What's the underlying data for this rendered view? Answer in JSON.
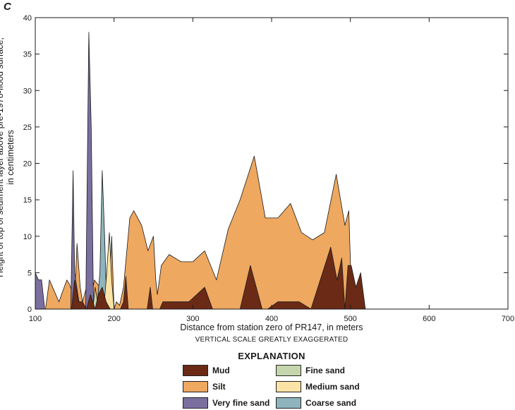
{
  "panel_letter": "C",
  "chart_data": {
    "type": "area",
    "xlabel": "Distance from station zero of PR147, in meters",
    "ylabel_lines": [
      "Height of top of sediment layer above pre-1978-flood surface,",
      "in centimeters"
    ],
    "note": "VERTICAL SCALE GREATLY EXAGGERATED",
    "xlim": [
      100,
      700
    ],
    "ylim": [
      0,
      40
    ],
    "xticks": [
      100,
      200,
      300,
      400,
      500,
      600,
      700
    ],
    "yticks": [
      0,
      5,
      10,
      15,
      20,
      25,
      30,
      35,
      40
    ],
    "x_tick_labels": [
      "100",
      "200",
      "300",
      "400",
      "500",
      "600",
      "700"
    ],
    "y_tick_labels": [
      "0",
      "5",
      "10",
      "15",
      "20",
      "25",
      "30",
      "35",
      "40"
    ],
    "grid": false,
    "legend_title": "EXPLANATION",
    "legend": [
      {
        "label": "Mud",
        "color": "#6b2a16"
      },
      {
        "label": "Silt",
        "color": "#eea860"
      },
      {
        "label": "Very fine sand",
        "color": "#7b6fa0"
      },
      {
        "label": "Fine sand",
        "color": "#c5d6ac"
      },
      {
        "label": "Medium sand",
        "color": "#fbe3a6"
      },
      {
        "label": "Coarse sand",
        "color": "#8fb4bd"
      }
    ],
    "series": [
      {
        "name": "Silt",
        "color": "#eea860",
        "points": [
          [
            113,
            0
          ],
          [
            118,
            4
          ],
          [
            130,
            1
          ],
          [
            140,
            4
          ],
          [
            143,
            3.5
          ],
          [
            150,
            1.5
          ],
          [
            153,
            9
          ],
          [
            157,
            3
          ],
          [
            160,
            1
          ],
          [
            165,
            3
          ],
          [
            167,
            12
          ],
          [
            170,
            1
          ],
          [
            175,
            4
          ],
          [
            182,
            3
          ],
          [
            185,
            2
          ],
          [
            190,
            3
          ],
          [
            194,
            2
          ],
          [
            197,
            10
          ],
          [
            200,
            0
          ],
          [
            203,
            1
          ],
          [
            207,
            0.5
          ],
          [
            212,
            3
          ],
          [
            220,
            12.5
          ],
          [
            225,
            13.5
          ],
          [
            235,
            11.5
          ],
          [
            243,
            8
          ],
          [
            250,
            10
          ],
          [
            253,
            4
          ],
          [
            255,
            2
          ],
          [
            260,
            6
          ],
          [
            270,
            7.5
          ],
          [
            285,
            6.5
          ],
          [
            300,
            6.5
          ],
          [
            315,
            8
          ],
          [
            330,
            4
          ],
          [
            345,
            11
          ],
          [
            360,
            15
          ],
          [
            378,
            21
          ],
          [
            392,
            12.5
          ],
          [
            408,
            12.5
          ],
          [
            424,
            14.5
          ],
          [
            438,
            10.5
          ],
          [
            452,
            9.5
          ],
          [
            467,
            10.5
          ],
          [
            482,
            18.5
          ],
          [
            493,
            11.5
          ],
          [
            498,
            13.5
          ],
          [
            502,
            0
          ]
        ]
      },
      {
        "name": "Coarse sand",
        "color": "#8fb4bd",
        "points": [
          [
            178,
            0
          ],
          [
            182,
            5
          ],
          [
            185,
            19
          ],
          [
            188,
            10
          ],
          [
            190,
            3
          ],
          [
            192,
            0
          ]
        ]
      },
      {
        "name": "Medium sand",
        "color": "#fbe3a6",
        "points": [
          [
            187,
            0
          ],
          [
            190,
            4
          ],
          [
            194,
            10.5
          ],
          [
            197,
            4
          ],
          [
            200,
            0
          ]
        ]
      },
      {
        "name": "Fine sand",
        "color": "#c5d6ac",
        "points": [
          [
            173,
            0
          ],
          [
            176,
            3
          ],
          [
            179,
            1
          ],
          [
            181,
            0
          ]
        ]
      },
      {
        "name": "Very fine sand",
        "color": "#7b6fa0",
        "points": [
          [
            100,
            5
          ],
          [
            104,
            4
          ],
          [
            108,
            4
          ],
          [
            112,
            0
          ],
          [
            145,
            0
          ],
          [
            148,
            19
          ],
          [
            150,
            5
          ],
          [
            154,
            2
          ],
          [
            157,
            0
          ],
          [
            164,
            0
          ],
          [
            168,
            38
          ],
          [
            171,
            25
          ],
          [
            174,
            0
          ],
          [
            180,
            0
          ]
        ]
      },
      {
        "name": "Mud",
        "color": "#6b2a16",
        "points": [
          [
            146,
            0
          ],
          [
            150,
            4
          ],
          [
            155,
            1
          ],
          [
            160,
            1
          ],
          [
            165,
            0
          ],
          [
            170,
            2
          ],
          [
            176,
            0
          ],
          [
            180,
            2
          ],
          [
            185,
            3
          ],
          [
            190,
            1
          ],
          [
            195,
            0
          ],
          [
            208,
            0
          ],
          [
            212,
            1
          ],
          [
            215,
            4.5
          ],
          [
            218,
            0
          ],
          [
            242,
            0
          ],
          [
            246,
            3
          ],
          [
            249,
            0
          ],
          [
            258,
            0
          ],
          [
            262,
            1
          ],
          [
            280,
            1
          ],
          [
            295,
            1
          ],
          [
            315,
            3
          ],
          [
            325,
            0
          ],
          [
            332,
            0
          ],
          [
            336,
            0
          ],
          [
            360,
            0
          ],
          [
            373,
            6
          ],
          [
            388,
            0
          ],
          [
            395,
            0
          ],
          [
            408,
            1
          ],
          [
            422,
            1
          ],
          [
            435,
            1
          ],
          [
            450,
            0
          ],
          [
            475,
            8.5
          ],
          [
            483,
            4
          ],
          [
            489,
            7
          ],
          [
            493,
            0
          ],
          [
            497,
            6
          ],
          [
            501,
            6
          ],
          [
            507,
            3
          ],
          [
            513,
            5
          ],
          [
            519,
            0
          ]
        ]
      }
    ]
  }
}
